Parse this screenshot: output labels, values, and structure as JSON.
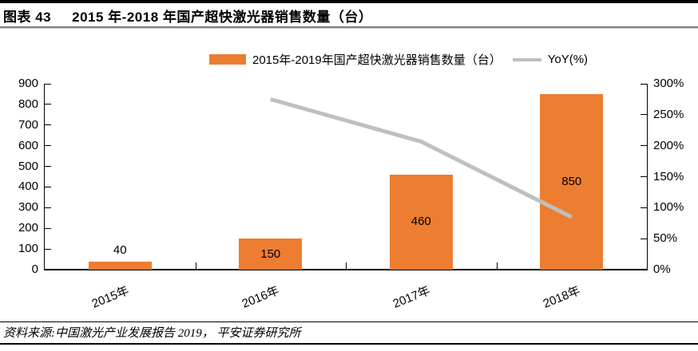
{
  "header": {
    "figure_label": "图表 43",
    "title": "2015 年-2018 年国产超快激光器销售数量（台）"
  },
  "legend": {
    "bar_label": "2015年-2019年国产超快激光器销售数量（台）",
    "line_label": "YoY(%)"
  },
  "colors": {
    "bar": "#ED7D31",
    "line": "#BFBFBF",
    "axis": "#000000"
  },
  "chart_data": {
    "type": "bar",
    "categories": [
      "2015年",
      "2016年",
      "2017年",
      "2018年"
    ],
    "series": [
      {
        "name": "2015年-2019年国产超快激光器销售数量（台）",
        "type": "bar",
        "axis": "left",
        "values": [
          40,
          150,
          460,
          850
        ],
        "color": "#ED7D31",
        "data_labels": [
          "40",
          "150",
          "460",
          "850"
        ]
      },
      {
        "name": "YoY(%)",
        "type": "line",
        "axis": "right",
        "values": [
          null,
          275,
          206.7,
          84.8
        ],
        "color": "#BFBFBF"
      }
    ],
    "left_axis": {
      "min": 0,
      "max": 900,
      "step": 100,
      "tick_labels": [
        "0",
        "100",
        "200",
        "300",
        "400",
        "500",
        "600",
        "700",
        "800",
        "900"
      ]
    },
    "right_axis": {
      "min": 0,
      "max": 300,
      "step": 50,
      "tick_labels": [
        "0%",
        "50%",
        "100%",
        "150%",
        "200%",
        "250%",
        "300%"
      ]
    },
    "grid": false,
    "legend_position": "top-center",
    "title": "2015 年-2018 年国产超快激光器销售数量（台）"
  },
  "footer": {
    "source": "资料来源:中国激光产业发展报告 2019， 平安证券研究所"
  }
}
